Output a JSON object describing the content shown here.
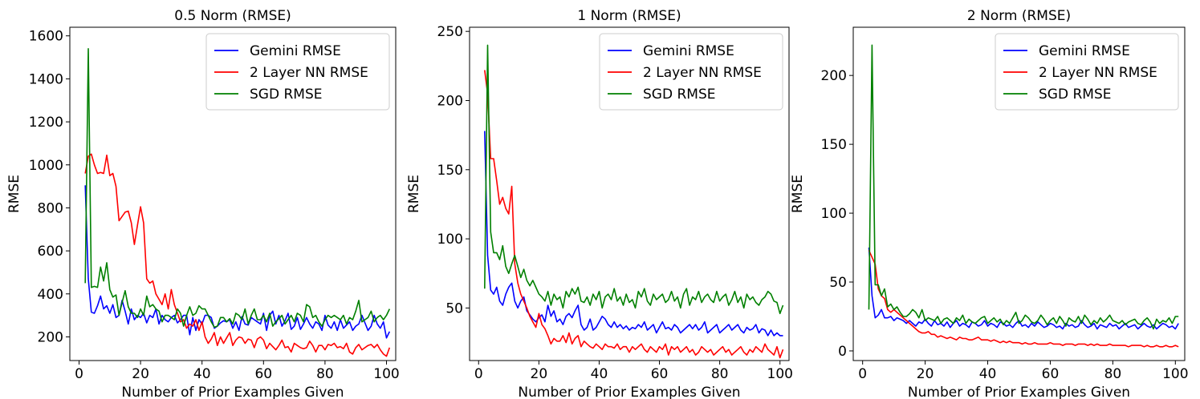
{
  "chart_data": [
    {
      "type": "line",
      "title": "0.5 Norm (RMSE)",
      "xlabel": "Number of Prior Examples Given",
      "ylabel": "RMSE",
      "xlim": [
        -3,
        103
      ],
      "ylim": [
        90,
        1640
      ],
      "xticks": [
        0,
        20,
        40,
        60,
        80,
        100
      ],
      "yticks": [
        200,
        400,
        600,
        800,
        1000,
        1200,
        1400,
        1600
      ],
      "legend_position": "top-right",
      "series": [
        {
          "name": "Gemini RMSE",
          "color": "#0000ff",
          "x_start": 2,
          "values": [
            905,
            470,
            315,
            310,
            345,
            390,
            330,
            345,
            310,
            350,
            290,
            300,
            370,
            320,
            260,
            330,
            280,
            300,
            290,
            310,
            265,
            300,
            290,
            330,
            260,
            300,
            280,
            270,
            290,
            300,
            265,
            280,
            300,
            300,
            210,
            290,
            230,
            280,
            260,
            300,
            300,
            290,
            240,
            250,
            265,
            275,
            270,
            280,
            240,
            270,
            230,
            295,
            260,
            255,
            290,
            280,
            270,
            260,
            310,
            230,
            300,
            320,
            260,
            300,
            250,
            275,
            310,
            235,
            250,
            290,
            235,
            260,
            290,
            260,
            240,
            270,
            260,
            230,
            300,
            255,
            240,
            270,
            230,
            280,
            240,
            255,
            270,
            230,
            250,
            260,
            300,
            265,
            230,
            250,
            300,
            260,
            240,
            270,
            195,
            225
          ]
        },
        {
          "name": "2 Layer NN RMSE",
          "color": "#ff0000",
          "x_start": 2,
          "values": [
            960,
            1040,
            1050,
            1000,
            960,
            965,
            960,
            1045,
            950,
            960,
            900,
            740,
            760,
            780,
            785,
            730,
            630,
            720,
            805,
            730,
            470,
            450,
            460,
            400,
            375,
            350,
            400,
            330,
            420,
            350,
            310,
            270,
            280,
            240,
            260,
            250,
            280,
            230,
            270,
            200,
            170,
            190,
            220,
            160,
            200,
            170,
            195,
            220,
            160,
            185,
            200,
            195,
            170,
            190,
            185,
            150,
            190,
            200,
            185,
            145,
            170,
            155,
            140,
            160,
            185,
            150,
            155,
            130,
            170,
            160,
            150,
            145,
            150,
            180,
            160,
            130,
            160,
            160,
            140,
            165,
            160,
            170,
            150,
            155,
            145,
            170,
            130,
            120,
            150,
            165,
            140,
            150,
            160,
            165,
            150,
            165,
            140,
            120,
            110,
            150
          ]
        },
        {
          "name": "SGD RMSE",
          "color": "#008000",
          "x_start": 2,
          "values": [
            450,
            1540,
            430,
            435,
            430,
            525,
            460,
            545,
            420,
            385,
            395,
            300,
            360,
            415,
            340,
            310,
            310,
            290,
            330,
            300,
            390,
            340,
            350,
            330,
            320,
            270,
            300,
            300,
            290,
            280,
            330,
            310,
            250,
            300,
            340,
            300,
            310,
            345,
            330,
            330,
            300,
            270,
            245,
            250,
            290,
            290,
            270,
            285,
            260,
            310,
            300,
            280,
            330,
            260,
            300,
            330,
            280,
            280,
            300,
            270,
            310,
            250,
            270,
            285,
            300,
            260,
            280,
            300,
            270,
            310,
            300,
            270,
            350,
            340,
            290,
            300,
            270,
            250,
            280,
            300,
            290,
            300,
            290,
            280,
            300,
            260,
            290,
            280,
            320,
            370,
            270,
            280,
            290,
            320,
            270,
            290,
            300,
            280,
            300,
            330
          ]
        }
      ]
    },
    {
      "type": "line",
      "title": "1 Norm (RMSE)",
      "xlabel": "Number of Prior Examples Given",
      "ylabel": "RMSE",
      "xlim": [
        -3,
        103
      ],
      "ylim": [
        12,
        253
      ],
      "xticks": [
        0,
        20,
        40,
        60,
        80,
        100
      ],
      "yticks": [
        50,
        100,
        150,
        200,
        250
      ],
      "legend_position": "top-right",
      "series": [
        {
          "name": "Gemini RMSE",
          "color": "#0000ff",
          "x_start": 2,
          "values": [
            178,
            88,
            63,
            60,
            65,
            55,
            52,
            60,
            65,
            68,
            55,
            50,
            55,
            58,
            48,
            45,
            42,
            40,
            43,
            45,
            40,
            52,
            44,
            48,
            40,
            42,
            38,
            44,
            46,
            43,
            48,
            52,
            38,
            34,
            36,
            42,
            34,
            36,
            40,
            44,
            42,
            38,
            36,
            40,
            36,
            38,
            35,
            37,
            34,
            36,
            35,
            38,
            36,
            40,
            34,
            36,
            38,
            32,
            36,
            40,
            35,
            36,
            34,
            38,
            36,
            32,
            34,
            36,
            38,
            35,
            38,
            34,
            36,
            40,
            32,
            34,
            36,
            38,
            32,
            34,
            36,
            38,
            34,
            36,
            38,
            34,
            32,
            36,
            34,
            35,
            38,
            32,
            35,
            34,
            30,
            34,
            30,
            32,
            30,
            30
          ]
        },
        {
          "name": "2 Layer NN RMSE",
          "color": "#ff0000",
          "x_start": 2,
          "values": [
            222,
            205,
            158,
            158,
            142,
            125,
            130,
            122,
            118,
            138,
            82,
            68,
            60,
            55,
            50,
            44,
            40,
            36,
            46,
            38,
            35,
            30,
            24,
            28,
            26,
            26,
            30,
            25,
            32,
            24,
            28,
            30,
            22,
            26,
            24,
            22,
            21,
            24,
            22,
            20,
            24,
            22,
            22,
            21,
            24,
            20,
            22,
            22,
            18,
            22,
            20,
            22,
            24,
            20,
            18,
            22,
            20,
            18,
            22,
            20,
            24,
            16,
            22,
            20,
            22,
            18,
            20,
            22,
            18,
            20,
            16,
            18,
            22,
            20,
            18,
            20,
            16,
            18,
            20,
            22,
            18,
            20,
            16,
            18,
            20,
            22,
            18,
            16,
            20,
            18,
            22,
            20,
            18,
            24,
            20,
            18,
            16,
            22,
            14,
            20
          ]
        },
        {
          "name": "SGD RMSE",
          "color": "#008000",
          "x_start": 2,
          "values": [
            64,
            240,
            105,
            90,
            90,
            85,
            95,
            80,
            75,
            82,
            88,
            80,
            72,
            78,
            70,
            66,
            70,
            65,
            60,
            58,
            55,
            62,
            52,
            60,
            56,
            58,
            50,
            62,
            58,
            64,
            60,
            65,
            55,
            54,
            58,
            52,
            60,
            56,
            62,
            50,
            58,
            60,
            56,
            64,
            55,
            58,
            52,
            60,
            54,
            56,
            50,
            62,
            58,
            64,
            55,
            52,
            60,
            56,
            58,
            60,
            54,
            56,
            62,
            55,
            58,
            50,
            60,
            64,
            52,
            58,
            56,
            62,
            54,
            58,
            60,
            56,
            54,
            62,
            55,
            58,
            60,
            52,
            56,
            62,
            54,
            58,
            50,
            60,
            56,
            58,
            54,
            52,
            56,
            58,
            62,
            60,
            55,
            54,
            46,
            52
          ]
        }
      ]
    },
    {
      "type": "line",
      "title": "2 Norm (RMSE)",
      "xlabel": "Number of Prior Examples Given",
      "ylabel": "RMSE",
      "xlim": [
        -3,
        103
      ],
      "ylim": [
        -7,
        235
      ],
      "xticks": [
        0,
        20,
        40,
        60,
        80,
        100
      ],
      "yticks": [
        0,
        50,
        100,
        150,
        200
      ],
      "legend_position": "top-right",
      "series": [
        {
          "name": "Gemini RMSE",
          "color": "#0000ff",
          "x_start": 2,
          "values": [
            75,
            40,
            24,
            26,
            30,
            24,
            24,
            25,
            22,
            24,
            23,
            22,
            20,
            22,
            20,
            18,
            21,
            20,
            23,
            20,
            18,
            22,
            19,
            20,
            18,
            21,
            17,
            20,
            22,
            18,
            20,
            19,
            17,
            21,
            20,
            18,
            19,
            22,
            18,
            20,
            19,
            17,
            21,
            20,
            18,
            19,
            17,
            20,
            22,
            18,
            19,
            17,
            20,
            18,
            21,
            19,
            17,
            18,
            20,
            19,
            17,
            18,
            16,
            20,
            18,
            19,
            17,
            18,
            22,
            19,
            17,
            18,
            20,
            16,
            19,
            18,
            17,
            20,
            18,
            19,
            16,
            18,
            20,
            17,
            18,
            19,
            16,
            18,
            20,
            18,
            17,
            19,
            16,
            18,
            20,
            19,
            17,
            18,
            16,
            20
          ]
        },
        {
          "name": "2 Layer NN RMSE",
          "color": "#ff0000",
          "x_start": 2,
          "values": [
            73,
            68,
            63,
            45,
            40,
            38,
            30,
            28,
            30,
            28,
            26,
            24,
            22,
            20,
            18,
            16,
            14,
            13,
            13,
            14,
            12,
            12,
            10,
            11,
            10,
            9,
            10,
            9,
            8,
            10,
            9,
            9,
            8,
            8,
            9,
            10,
            8,
            8,
            8,
            7,
            8,
            7,
            6,
            7,
            6,
            7,
            6,
            6,
            6,
            5,
            6,
            5,
            5,
            6,
            5,
            5,
            5,
            5,
            6,
            5,
            5,
            5,
            4,
            5,
            5,
            5,
            4,
            5,
            5,
            5,
            4,
            5,
            4,
            5,
            4,
            4,
            4,
            5,
            4,
            4,
            4,
            4,
            4,
            3,
            4,
            4,
            4,
            4,
            3,
            4,
            3,
            3,
            4,
            3,
            3,
            4,
            3,
            3,
            4,
            3
          ]
        },
        {
          "name": "SGD RMSE",
          "color": "#008000",
          "x_start": 2,
          "values": [
            30,
            222,
            48,
            48,
            40,
            45,
            32,
            34,
            30,
            32,
            28,
            25,
            25,
            27,
            30,
            28,
            24,
            30,
            22,
            24,
            23,
            22,
            25,
            20,
            23,
            24,
            22,
            20,
            24,
            22,
            26,
            20,
            23,
            21,
            20,
            22,
            24,
            25,
            20,
            22,
            24,
            21,
            23,
            19,
            22,
            20,
            24,
            28,
            20,
            22,
            26,
            24,
            21,
            20,
            22,
            26,
            23,
            19,
            22,
            24,
            20,
            25,
            22,
            18,
            24,
            22,
            21,
            25,
            20,
            26,
            23,
            19,
            22,
            20,
            24,
            21,
            23,
            26,
            22,
            21,
            20,
            22,
            19,
            21,
            22,
            23,
            20,
            19,
            22,
            24,
            21,
            16,
            23,
            20,
            22,
            21,
            24,
            20,
            25,
            25
          ]
        }
      ]
    }
  ]
}
